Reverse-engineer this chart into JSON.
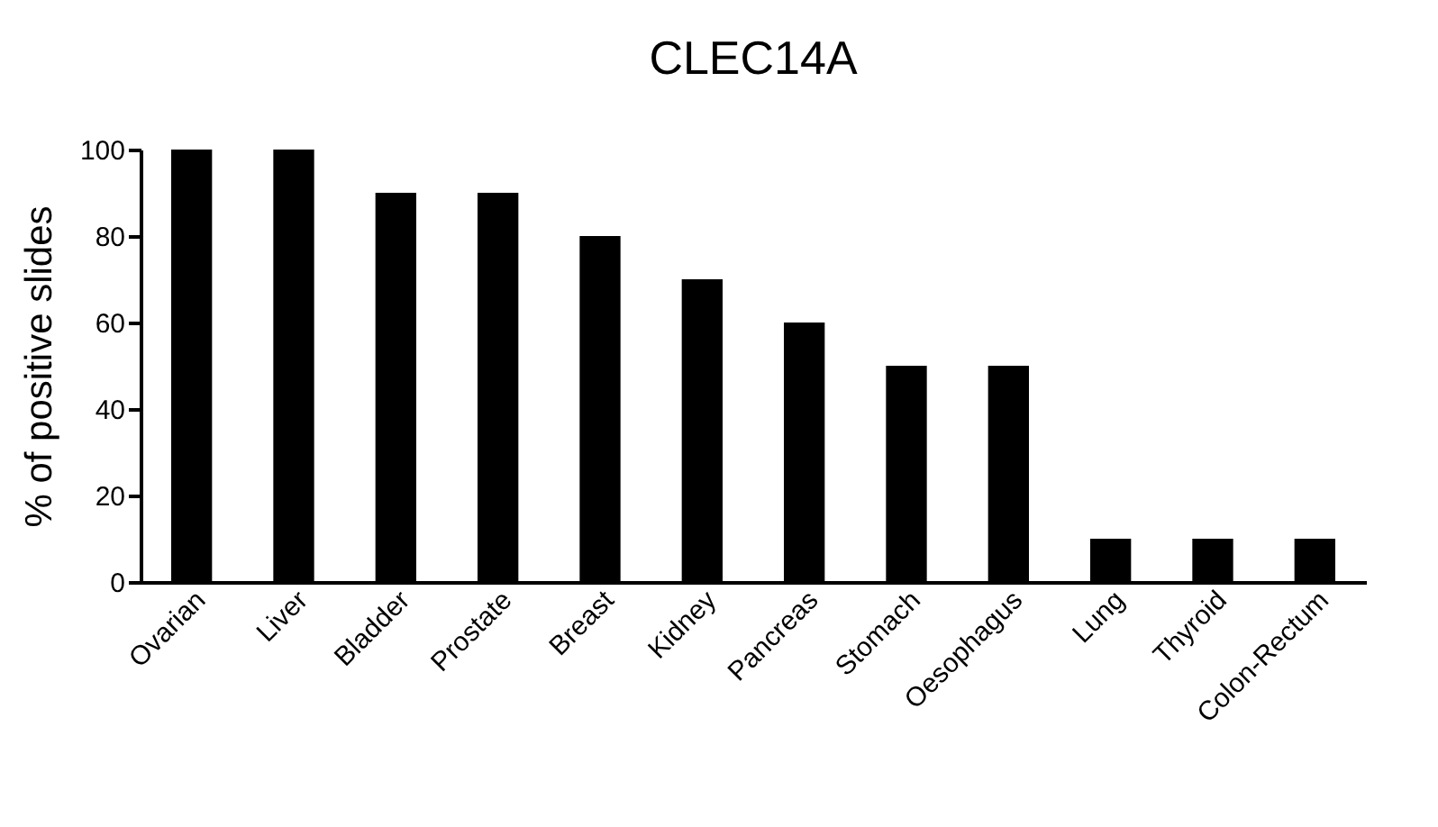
{
  "chart_data": {
    "type": "bar",
    "title": "CLEC14A",
    "ylabel": "% of positive slides",
    "categories": [
      "Ovarian",
      "Liver",
      "Bladder",
      "Prostate",
      "Breast",
      "Kidney",
      "Pancreas",
      "Stomach",
      "Oesophagus",
      "Lung",
      "Thyroid",
      "Colon-Rectum"
    ],
    "values": [
      100,
      100,
      90,
      90,
      80,
      70,
      60,
      50,
      50,
      10,
      10,
      10
    ],
    "color": "#000000",
    "ylim": [
      0,
      100
    ],
    "yticks": [
      0,
      20,
      40,
      60,
      80,
      100
    ],
    "grid": false
  }
}
